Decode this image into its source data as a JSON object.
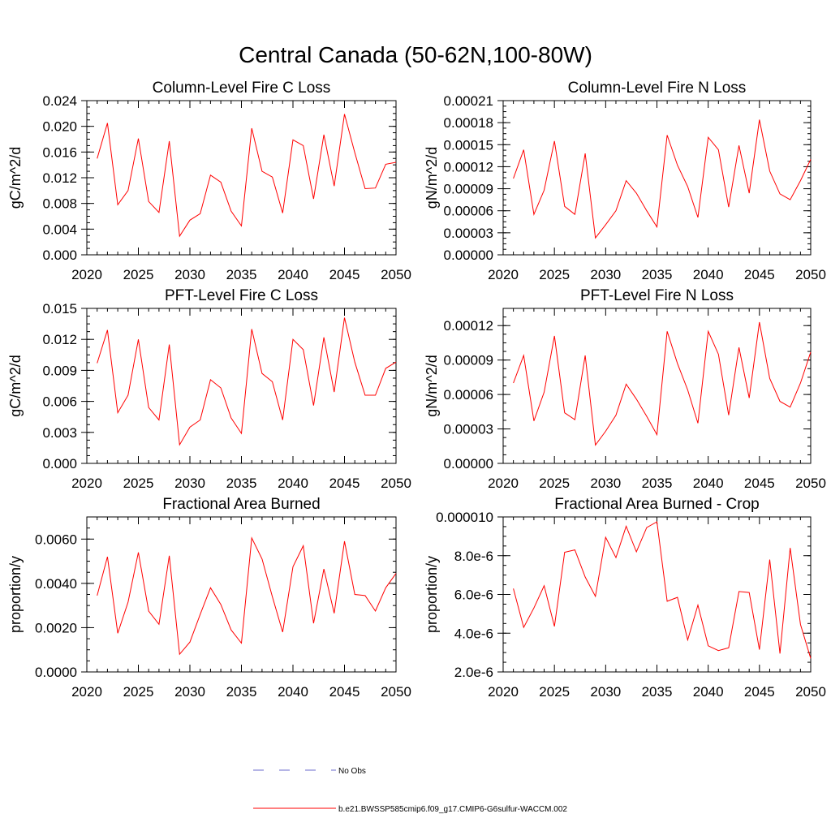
{
  "figure": {
    "title": "Central Canada (50-62N,100-80W)"
  },
  "chart_data": [
    {
      "type": "line",
      "title": "Column-Level Fire C Loss",
      "ylabel": "gC/m^2/d",
      "xlim": [
        2020,
        2050
      ],
      "ylim": [
        0,
        0.024
      ],
      "xticks": [
        2020,
        2025,
        2030,
        2035,
        2040,
        2045,
        2050
      ],
      "xtick_labels": [
        "2020",
        "2025",
        "2030",
        "2035",
        "2040",
        "2045",
        "2050"
      ],
      "yticks": [
        0,
        0.004,
        0.008,
        0.012,
        0.016,
        0.02,
        0.024
      ],
      "ytick_labels": [
        "0.000",
        "0.004",
        "0.008",
        "0.012",
        "0.016",
        "0.020",
        "0.024"
      ],
      "series": [
        {
          "color": "#ff0000",
          "x": [
            2021,
            2022,
            2023,
            2024,
            2025,
            2026,
            2027,
            2028,
            2029,
            2030,
            2031,
            2032,
            2033,
            2034,
            2035,
            2036,
            2037,
            2038,
            2039,
            2040,
            2041,
            2042,
            2043,
            2044,
            2045,
            2046,
            2047,
            2048,
            2049,
            2050
          ],
          "y": [
            0.015,
            0.0205,
            0.0078,
            0.01,
            0.0181,
            0.0083,
            0.0066,
            0.0177,
            0.0029,
            0.0054,
            0.0064,
            0.0124,
            0.0113,
            0.0068,
            0.0045,
            0.0197,
            0.013,
            0.0121,
            0.0065,
            0.0179,
            0.017,
            0.0087,
            0.0187,
            0.0107,
            0.0219,
            0.0159,
            0.0103,
            0.0104,
            0.0141,
            0.0144
          ]
        }
      ]
    },
    {
      "type": "line",
      "title": "Column-Level Fire N Loss",
      "ylabel": "gN/m^2/d",
      "xlim": [
        2020,
        2050
      ],
      "ylim": [
        0,
        0.00021
      ],
      "xticks": [
        2020,
        2025,
        2030,
        2035,
        2040,
        2045,
        2050
      ],
      "xtick_labels": [
        "2020",
        "2025",
        "2030",
        "2035",
        "2040",
        "2045",
        "2050"
      ],
      "yticks": [
        0,
        3e-05,
        6e-05,
        9e-05,
        0.00012,
        0.00015,
        0.00018,
        0.00021
      ],
      "ytick_labels": [
        "0.00000",
        "0.00003",
        "0.00006",
        "0.00009",
        "0.00012",
        "0.00015",
        "0.00018",
        "0.00021"
      ],
      "series": [
        {
          "color": "#ff0000",
          "x": [
            2021,
            2022,
            2023,
            2024,
            2025,
            2026,
            2027,
            2028,
            2029,
            2030,
            2031,
            2032,
            2033,
            2034,
            2035,
            2036,
            2037,
            2038,
            2039,
            2040,
            2041,
            2042,
            2043,
            2044,
            2045,
            2046,
            2047,
            2048,
            2049,
            2050
          ],
          "y": [
            0.000104,
            0.000143,
            5.5e-05,
            8.8e-05,
            0.000155,
            6.6e-05,
            5.5e-05,
            0.000138,
            2.3e-05,
            4.1e-05,
            6e-05,
            0.000101,
            8.4e-05,
            6e-05,
            3.8e-05,
            0.000163,
            0.000122,
            9.3e-05,
            5.1e-05,
            0.00016,
            0.000143,
            6.5e-05,
            0.000149,
            8.4e-05,
            0.000184,
            0.000114,
            8.3e-05,
            7.5e-05,
            0.000101,
            0.00013
          ]
        }
      ]
    },
    {
      "type": "line",
      "title": "PFT-Level Fire C Loss",
      "ylabel": "gC/m^2/d",
      "xlim": [
        2020,
        2050
      ],
      "ylim": [
        0,
        0.015
      ],
      "xticks": [
        2020,
        2025,
        2030,
        2035,
        2040,
        2045,
        2050
      ],
      "xtick_labels": [
        "2020",
        "2025",
        "2030",
        "2035",
        "2040",
        "2045",
        "2050"
      ],
      "yticks": [
        0,
        0.003,
        0.006,
        0.009,
        0.012,
        0.015
      ],
      "ytick_labels": [
        "0.000",
        "0.003",
        "0.006",
        "0.009",
        "0.012",
        "0.015"
      ],
      "series": [
        {
          "color": "#ff0000",
          "x": [
            2021,
            2022,
            2023,
            2024,
            2025,
            2026,
            2027,
            2028,
            2029,
            2030,
            2031,
            2032,
            2033,
            2034,
            2035,
            2036,
            2037,
            2038,
            2039,
            2040,
            2041,
            2042,
            2043,
            2044,
            2045,
            2046,
            2047,
            2048,
            2049,
            2050
          ],
          "y": [
            0.0097,
            0.0129,
            0.0049,
            0.0066,
            0.012,
            0.0054,
            0.0042,
            0.0115,
            0.0018,
            0.0035,
            0.0042,
            0.0081,
            0.0073,
            0.0044,
            0.0029,
            0.013,
            0.0087,
            0.0079,
            0.0042,
            0.012,
            0.011,
            0.0056,
            0.0122,
            0.0069,
            0.0141,
            0.0098,
            0.0066,
            0.0066,
            0.0092,
            0.0098
          ]
        }
      ]
    },
    {
      "type": "line",
      "title": "PFT-Level Fire N Loss",
      "ylabel": "gN/m^2/d",
      "xlim": [
        2020,
        2050
      ],
      "ylim": [
        0,
        0.000135
      ],
      "xticks": [
        2020,
        2025,
        2030,
        2035,
        2040,
        2045,
        2050
      ],
      "xtick_labels": [
        "2020",
        "2025",
        "2030",
        "2035",
        "2040",
        "2045",
        "2050"
      ],
      "yticks": [
        0,
        3e-05,
        6e-05,
        9e-05,
        0.00012
      ],
      "ytick_labels": [
        "0.00000",
        "0.00003",
        "0.00006",
        "0.00009",
        "0.00012"
      ],
      "series": [
        {
          "color": "#ff0000",
          "x": [
            2021,
            2022,
            2023,
            2024,
            2025,
            2026,
            2027,
            2028,
            2029,
            2030,
            2031,
            2032,
            2033,
            2034,
            2035,
            2036,
            2037,
            2038,
            2039,
            2040,
            2041,
            2042,
            2043,
            2044,
            2045,
            2046,
            2047,
            2048,
            2049,
            2050
          ],
          "y": [
            7e-05,
            9.4e-05,
            3.7e-05,
            6.2e-05,
            0.000111,
            4.4e-05,
            3.8e-05,
            9.4e-05,
            1.6e-05,
            2.8e-05,
            4.2e-05,
            6.9e-05,
            5.6e-05,
            4.1e-05,
            2.5e-05,
            0.000115,
            8.7e-05,
            6.4e-05,
            3.5e-05,
            0.000115,
            9.5e-05,
            4.2e-05,
            0.000101,
            5.7e-05,
            0.000123,
            7.4e-05,
            5.4e-05,
            4.9e-05,
            7e-05,
            9.7e-05
          ]
        }
      ]
    },
    {
      "type": "line",
      "title": "Fractional Area Burned",
      "ylabel": "proportion/y",
      "xlim": [
        2020,
        2050
      ],
      "ylim": [
        0,
        0.007
      ],
      "xticks": [
        2020,
        2025,
        2030,
        2035,
        2040,
        2045,
        2050
      ],
      "xtick_labels": [
        "2020",
        "2025",
        "2030",
        "2035",
        "2040",
        "2045",
        "2050"
      ],
      "yticks": [
        0,
        0.002,
        0.004,
        0.006
      ],
      "ytick_labels": [
        "0.0000",
        "0.0020",
        "0.0040",
        "0.0060"
      ],
      "series": [
        {
          "color": "#ff0000",
          "x": [
            2021,
            2022,
            2023,
            2024,
            2025,
            2026,
            2027,
            2028,
            2029,
            2030,
            2031,
            2032,
            2033,
            2034,
            2035,
            2036,
            2037,
            2038,
            2039,
            2040,
            2041,
            2042,
            2043,
            2044,
            2045,
            2046,
            2047,
            2048,
            2049,
            2050
          ],
          "y": [
            0.00345,
            0.0052,
            0.00175,
            0.00315,
            0.0054,
            0.00275,
            0.00215,
            0.00525,
            0.0008,
            0.00135,
            0.0026,
            0.0038,
            0.00305,
            0.0019,
            0.0013,
            0.00605,
            0.0051,
            0.0034,
            0.0018,
            0.00475,
            0.0057,
            0.0022,
            0.00465,
            0.00265,
            0.0059,
            0.0035,
            0.00345,
            0.00275,
            0.0038,
            0.00445
          ]
        }
      ]
    },
    {
      "type": "line",
      "title": "Fractional Area Burned - Crop",
      "ylabel": "proportion/y",
      "xlim": [
        2020,
        2050
      ],
      "ylim": [
        2e-06,
        1e-05
      ],
      "xticks": [
        2020,
        2025,
        2030,
        2035,
        2040,
        2045,
        2050
      ],
      "xtick_labels": [
        "2020",
        "2025",
        "2030",
        "2035",
        "2040",
        "2045",
        "2050"
      ],
      "yticks": [
        2e-06,
        4e-06,
        6e-06,
        8e-06,
        1e-05
      ],
      "ytick_labels": [
        "2.0e-6",
        "4.0e-6",
        "6.0e-6",
        "8.0e-6",
        "0.000010"
      ],
      "series": [
        {
          "color": "#ff0000",
          "x": [
            2021,
            2022,
            2023,
            2024,
            2025,
            2026,
            2027,
            2028,
            2029,
            2030,
            2031,
            2032,
            2033,
            2034,
            2035,
            2036,
            2037,
            2038,
            2039,
            2040,
            2041,
            2042,
            2043,
            2044,
            2045,
            2046,
            2047,
            2048,
            2049,
            2050
          ],
          "y": [
            6.3e-06,
            4.3e-06,
            5.3e-06,
            6.45e-06,
            4.35e-06,
            8.18e-06,
            8.3e-06,
            6.9e-06,
            5.9e-06,
            8.95e-06,
            7.9e-06,
            9.52e-06,
            8.2e-06,
            9.45e-06,
            9.75e-06,
            5.65e-06,
            5.85e-06,
            3.65e-06,
            5.45e-06,
            3.35e-06,
            3.1e-06,
            3.25e-06,
            6.15e-06,
            6.1e-06,
            3.15e-06,
            7.8e-06,
            2.95e-06,
            8.4e-06,
            4.45e-06,
            2.7e-06
          ]
        }
      ]
    }
  ],
  "legend": {
    "items": [
      {
        "label": "No Obs",
        "color": "#6b6bcc",
        "dash": true
      },
      {
        "label": "b.e21.BWSSP585cmip6.f09_g17.CMIP6-G6sulfur-WACCM.002",
        "color": "#ff0000",
        "dash": false
      }
    ]
  }
}
